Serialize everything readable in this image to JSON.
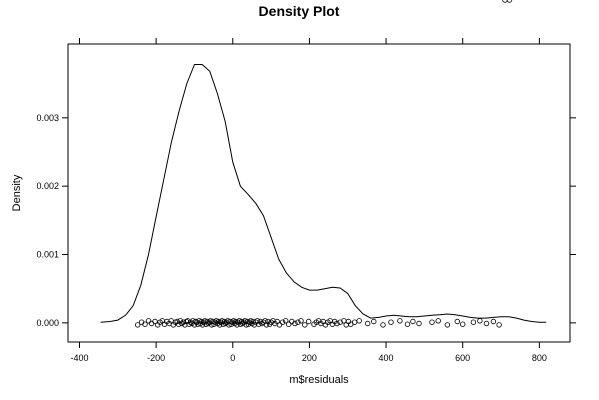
{
  "chart_data": {
    "type": "line",
    "title": "Density Plot",
    "xlabel": "m$residuals",
    "ylabel": "Density",
    "xlim": [
      -430,
      880
    ],
    "ylim": [
      -0.00028,
      0.00408
    ],
    "x_ticks": [
      -400,
      -200,
      0,
      200,
      400,
      600,
      800
    ],
    "x_tick_labels": [
      "-400",
      "-200",
      "0",
      "200",
      "400",
      "600",
      "800"
    ],
    "y_ticks": [
      0.0,
      0.001,
      0.002,
      0.003
    ],
    "y_tick_labels": [
      "0.000",
      "0.001",
      "0.002",
      "0.003"
    ],
    "grid": false,
    "legend": "none",
    "series": [
      {
        "values_x": [
          -345,
          -320,
          -300,
          -280,
          -260,
          -240,
          -220,
          -200,
          -180,
          -160,
          -140,
          -120,
          -100,
          -80,
          -60,
          -40,
          -20,
          0,
          20,
          40,
          60,
          80,
          100,
          120,
          140,
          160,
          180,
          200,
          220,
          240,
          260,
          280,
          300,
          320,
          340,
          360,
          380,
          400,
          420,
          440,
          460,
          480,
          500,
          520,
          540,
          560,
          580,
          600,
          620,
          640,
          660,
          680,
          700,
          720,
          740,
          760,
          780,
          800,
          818
        ],
        "values_y": [
          1e-05,
          2e-05,
          4e-05,
          0.00011,
          0.00025,
          0.00055,
          0.001,
          0.00155,
          0.0021,
          0.00265,
          0.0031,
          0.0035,
          0.00378,
          0.00378,
          0.00368,
          0.00335,
          0.00295,
          0.00235,
          0.002,
          0.00188,
          0.00175,
          0.00157,
          0.00125,
          0.00093,
          0.00073,
          0.0006,
          0.00052,
          0.00048,
          0.00048,
          0.0005,
          0.00052,
          0.00051,
          0.00043,
          0.00025,
          0.00013,
          7e-05,
          8e-05,
          0.0001,
          0.00011,
          0.0001,
          9e-05,
          9e-05,
          0.0001,
          0.00011,
          0.00012,
          0.00013,
          0.00012,
          0.0001,
          8e-05,
          7e-05,
          7e-05,
          8e-05,
          9e-05,
          9e-05,
          7e-05,
          4e-05,
          2e-05,
          1e-05,
          1e-05
        ]
      }
    ],
    "rug_x": [
      -248,
      -238,
      -229,
      -220,
      -212,
      -203,
      -196,
      -190,
      -184,
      -178,
      -172,
      -166,
      -161,
      -155,
      -150,
      -145,
      -141,
      -137,
      -133,
      -129,
      -125,
      -121,
      -117,
      -114,
      -110,
      -107,
      -104,
      -100,
      -97,
      -94,
      -91,
      -88,
      -85,
      -82,
      -79,
      -76,
      -73,
      -70,
      -67,
      -64,
      -61,
      -58,
      -55,
      -52,
      -49,
      -46,
      -43,
      -40,
      -37,
      -34,
      -31,
      -28,
      -25,
      -22,
      -19,
      -16,
      -13,
      -10,
      -7,
      -4,
      -1,
      2,
      5,
      8,
      11,
      14,
      17,
      20,
      23,
      26,
      29,
      32,
      35,
      38,
      41,
      44,
      47,
      50,
      53,
      56,
      60,
      64,
      68,
      72,
      76,
      80,
      84,
      88,
      92,
      96,
      100,
      105,
      110,
      116,
      122,
      130,
      138,
      146,
      154,
      162,
      170,
      178,
      188,
      198,
      212,
      218,
      224,
      230,
      236,
      242,
      248,
      254,
      260,
      266,
      272,
      280,
      290,
      296,
      302,
      308,
      318,
      330,
      352,
      368,
      392,
      413,
      436,
      456,
      470,
      486,
      520,
      536,
      560,
      586,
      600,
      628,
      645,
      662,
      680,
      695,
      710,
      722
    ],
    "rug_y": [
      -3e-05,
      1e-05,
      -2e-05,
      3e-05,
      -1e-05,
      2e-05,
      -3e-05,
      1e-05,
      3e-05,
      -2e-05,
      2e-05,
      -1e-05,
      3e-05,
      -3e-05,
      1e-05,
      2e-05,
      -2e-05,
      3e-05,
      -1e-05,
      1e-05,
      -3e-05,
      2e-05,
      3e-05,
      -2e-05,
      1e-05,
      -1e-05,
      3e-05,
      -3e-05,
      2e-05,
      1e-05,
      -2e-05,
      3e-05,
      -1e-05,
      2e-05,
      -3e-05,
      1e-05,
      3e-05,
      -2e-05,
      2e-05,
      -1e-05,
      1e-05,
      3e-05,
      -3e-05,
      2e-05,
      -2e-05,
      1e-05,
      3e-05,
      -1e-05,
      2e-05,
      -3e-05,
      1e-05,
      3e-05,
      -2e-05,
      2e-05,
      -1e-05,
      1e-05,
      3e-05,
      -3e-05,
      2e-05,
      -2e-05,
      1e-05,
      3e-05,
      -1e-05,
      2e-05,
      -3e-05,
      1e-05,
      3e-05,
      -2e-05,
      2e-05,
      -1e-05,
      1e-05,
      3e-05,
      -3e-05,
      2e-05,
      -2e-05,
      1e-05,
      3e-05,
      -1e-05,
      2e-05,
      -3e-05,
      1e-05,
      3e-05,
      -2e-05,
      2e-05,
      -1e-05,
      1e-05,
      3e-05,
      -3e-05,
      2e-05,
      -2e-05,
      1e-05,
      3e-05,
      -1e-05,
      2e-05,
      -3e-05,
      1e-05,
      3e-05,
      -2e-05,
      2e-05,
      -1e-05,
      1e-05,
      3e-05,
      -3e-05,
      2e-05,
      -2e-05,
      1e-05,
      3e-05,
      -1e-05,
      2e-05,
      -3e-05,
      1e-05,
      3e-05,
      -2e-05,
      2e-05,
      -1e-05,
      1e-05,
      3e-05,
      -3e-05,
      2e-05,
      -2e-05,
      1e-05,
      3e-05,
      -1e-05,
      2e-05,
      -3e-05,
      1e-05,
      3e-05,
      -2e-05,
      2e-05,
      -1e-05,
      1e-05,
      3e-05,
      -3e-05,
      2e-05,
      -2e-05,
      1e-05,
      3e-05,
      -1e-05,
      2e-05,
      -3e-05
    ]
  }
}
